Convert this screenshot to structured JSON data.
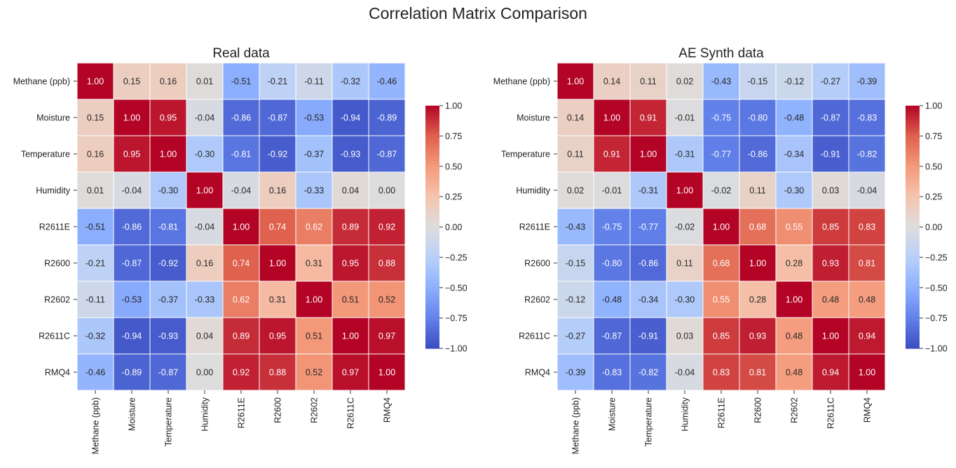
{
  "title": "Correlation Matrix Comparison",
  "chart_data": [
    {
      "type": "heatmap",
      "title": "Real data",
      "colormap": "coolwarm",
      "vmin": -1,
      "vmax": 1,
      "labels": [
        "Methane (ppb)",
        "Moisture",
        "Temperature",
        "Humidity",
        "R2611E",
        "R2600",
        "R2602",
        "R2611C",
        "RMQ4"
      ],
      "colorbar_ticks": [
        "1.00",
        "0.75",
        "0.50",
        "0.25",
        "0.00",
        "−0.25",
        "−0.50",
        "−0.75",
        "−1.00"
      ],
      "values": [
        [
          1.0,
          0.15,
          0.16,
          0.01,
          -0.51,
          -0.21,
          -0.11,
          -0.32,
          -0.46
        ],
        [
          0.15,
          1.0,
          0.95,
          -0.04,
          -0.86,
          -0.87,
          -0.53,
          -0.94,
          -0.89
        ],
        [
          0.16,
          0.95,
          1.0,
          -0.3,
          -0.81,
          -0.92,
          -0.37,
          -0.93,
          -0.87
        ],
        [
          0.01,
          -0.04,
          -0.3,
          1.0,
          -0.04,
          0.16,
          -0.33,
          0.04,
          0.0
        ],
        [
          -0.51,
          -0.86,
          -0.81,
          -0.04,
          1.0,
          0.74,
          0.62,
          0.89,
          0.92
        ],
        [
          -0.21,
          -0.87,
          -0.92,
          0.16,
          0.74,
          1.0,
          0.31,
          0.95,
          0.88
        ],
        [
          -0.11,
          -0.53,
          -0.37,
          -0.33,
          0.62,
          0.31,
          1.0,
          0.51,
          0.52
        ],
        [
          -0.32,
          -0.94,
          -0.93,
          0.04,
          0.89,
          0.95,
          0.51,
          1.0,
          0.97
        ],
        [
          -0.46,
          -0.89,
          -0.87,
          0.0,
          0.92,
          0.88,
          0.52,
          0.97,
          1.0
        ]
      ]
    },
    {
      "type": "heatmap",
      "title": "AE Synth data",
      "colormap": "coolwarm",
      "vmin": -1,
      "vmax": 1,
      "labels": [
        "Methane (ppb)",
        "Moisture",
        "Temperature",
        "Humidity",
        "R2611E",
        "R2600",
        "R2602",
        "R2611C",
        "RMQ4"
      ],
      "colorbar_ticks": [
        "1.00",
        "0.75",
        "0.50",
        "0.25",
        "0.00",
        "−0.25",
        "−0.50",
        "−0.75",
        "−1.00"
      ],
      "values": [
        [
          1.0,
          0.14,
          0.11,
          0.02,
          -0.43,
          -0.15,
          -0.12,
          -0.27,
          -0.39
        ],
        [
          0.14,
          1.0,
          0.91,
          -0.01,
          -0.75,
          -0.8,
          -0.48,
          -0.87,
          -0.83
        ],
        [
          0.11,
          0.91,
          1.0,
          -0.31,
          -0.77,
          -0.86,
          -0.34,
          -0.91,
          -0.82
        ],
        [
          0.02,
          -0.01,
          -0.31,
          1.0,
          -0.02,
          0.11,
          -0.3,
          0.03,
          -0.04
        ],
        [
          -0.43,
          -0.75,
          -0.77,
          -0.02,
          1.0,
          0.68,
          0.55,
          0.85,
          0.83
        ],
        [
          -0.15,
          -0.8,
          -0.86,
          0.11,
          0.68,
          1.0,
          0.28,
          0.93,
          0.81
        ],
        [
          -0.12,
          -0.48,
          -0.34,
          -0.3,
          0.55,
          0.28,
          1.0,
          0.48,
          0.48
        ],
        [
          -0.27,
          -0.87,
          -0.91,
          0.03,
          0.85,
          0.93,
          0.48,
          1.0,
          0.94
        ],
        [
          -0.39,
          -0.83,
          -0.82,
          -0.04,
          0.83,
          0.81,
          0.48,
          0.94,
          1.0
        ]
      ]
    }
  ]
}
